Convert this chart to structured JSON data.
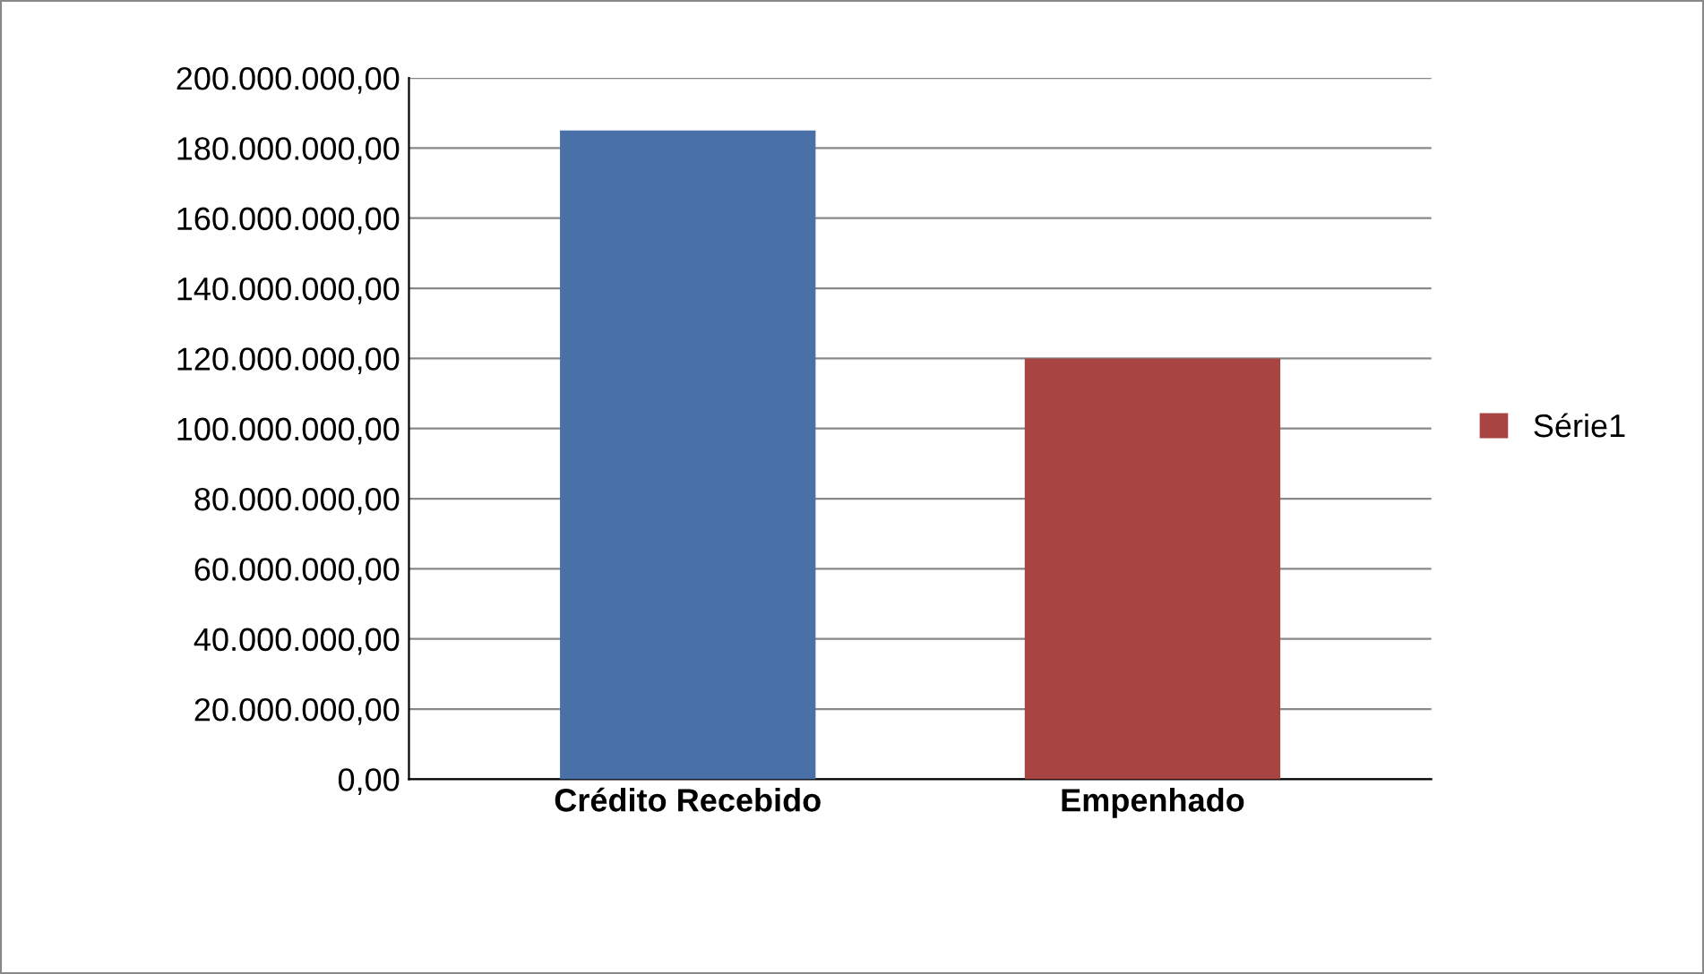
{
  "chart_data": {
    "type": "bar",
    "categories": [
      "Crédito Recebido",
      "Empenhado"
    ],
    "series": [
      {
        "name": "Série1",
        "colors": [
          "#4a70a8",
          "#a84442"
        ],
        "values": [
          185000000,
          120000000
        ]
      }
    ],
    "ylim": [
      0,
      200000000
    ],
    "yticks": [
      {
        "value": 0,
        "label": "0,00"
      },
      {
        "value": 20000000,
        "label": "20.000.000,00"
      },
      {
        "value": 40000000,
        "label": "40.000.000,00"
      },
      {
        "value": 60000000,
        "label": "60.000.000,00"
      },
      {
        "value": 80000000,
        "label": "80.000.000,00"
      },
      {
        "value": 100000000,
        "label": "100.000.000,00"
      },
      {
        "value": 120000000,
        "label": "120.000.000,00"
      },
      {
        "value": 140000000,
        "label": "140.000.000,00"
      },
      {
        "value": 160000000,
        "label": "160.000.000,00"
      },
      {
        "value": 180000000,
        "label": "180.000.000,00"
      },
      {
        "value": 200000000,
        "label": "200.000.000,00"
      }
    ],
    "grid": "y",
    "legend": "right"
  }
}
